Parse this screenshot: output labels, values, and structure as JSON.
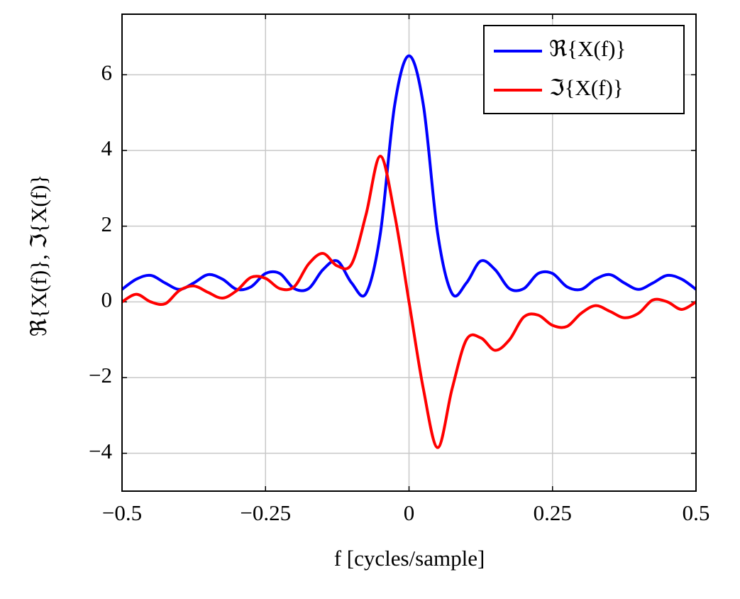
{
  "chart_data": {
    "type": "line",
    "xlabel": "f  [cycles/sample]",
    "ylabel": "ℜ{X(f)}, ℑ{X(f)}",
    "x": [
      -0.5,
      -0.475,
      -0.45,
      -0.425,
      -0.4,
      -0.375,
      -0.35,
      -0.325,
      -0.3,
      -0.275,
      -0.25,
      -0.225,
      -0.2,
      -0.175,
      -0.15,
      -0.125,
      -0.1,
      -0.075,
      -0.05,
      -0.025,
      0,
      0.025,
      0.05,
      0.075,
      0.1,
      0.125,
      0.15,
      0.175,
      0.2,
      0.225,
      0.25,
      0.275,
      0.3,
      0.325,
      0.35,
      0.375,
      0.4,
      0.425,
      0.45,
      0.475,
      0.5
    ],
    "series": [
      {
        "name": "ℜ{X(f)}",
        "color": "#0000ff",
        "values": [
          0.33,
          0.6,
          0.7,
          0.5,
          0.33,
          0.5,
          0.72,
          0.6,
          0.33,
          0.4,
          0.75,
          0.75,
          0.35,
          0.35,
          0.85,
          1.08,
          0.5,
          0.22,
          1.8,
          5.2,
          6.5,
          5.2,
          1.8,
          0.22,
          0.5,
          1.08,
          0.85,
          0.35,
          0.35,
          0.75,
          0.75,
          0.4,
          0.33,
          0.6,
          0.72,
          0.5,
          0.33,
          0.5,
          0.7,
          0.6,
          0.33
        ]
      },
      {
        "name": "ℑ{X(f)}",
        "color": "#ff0000",
        "values": [
          0,
          0.2,
          0,
          -0.05,
          0.3,
          0.42,
          0.25,
          0.1,
          0.3,
          0.65,
          0.62,
          0.35,
          0.4,
          1.0,
          1.28,
          0.95,
          1.0,
          2.3,
          3.85,
          2.3,
          0,
          -2.3,
          -3.85,
          -2.3,
          -1.0,
          -0.95,
          -1.28,
          -1.0,
          -0.4,
          -0.35,
          -0.62,
          -0.65,
          -0.3,
          -0.1,
          -0.25,
          -0.42,
          -0.3,
          0.05,
          0,
          -0.2,
          0
        ]
      }
    ],
    "xlim": [
      -0.5,
      0.5
    ],
    "xticks": [
      {
        "value": -0.5,
        "label": "−0.5"
      },
      {
        "value": -0.25,
        "label": "−0.25"
      },
      0,
      0.25,
      0.5
    ],
    "ylim": [
      -5,
      7.6
    ],
    "yticks": [
      {
        "value": -4,
        "label": "−4"
      },
      {
        "value": -2,
        "label": "−2"
      },
      0,
      2,
      4,
      6
    ],
    "grid": true,
    "legend": "top-right"
  }
}
